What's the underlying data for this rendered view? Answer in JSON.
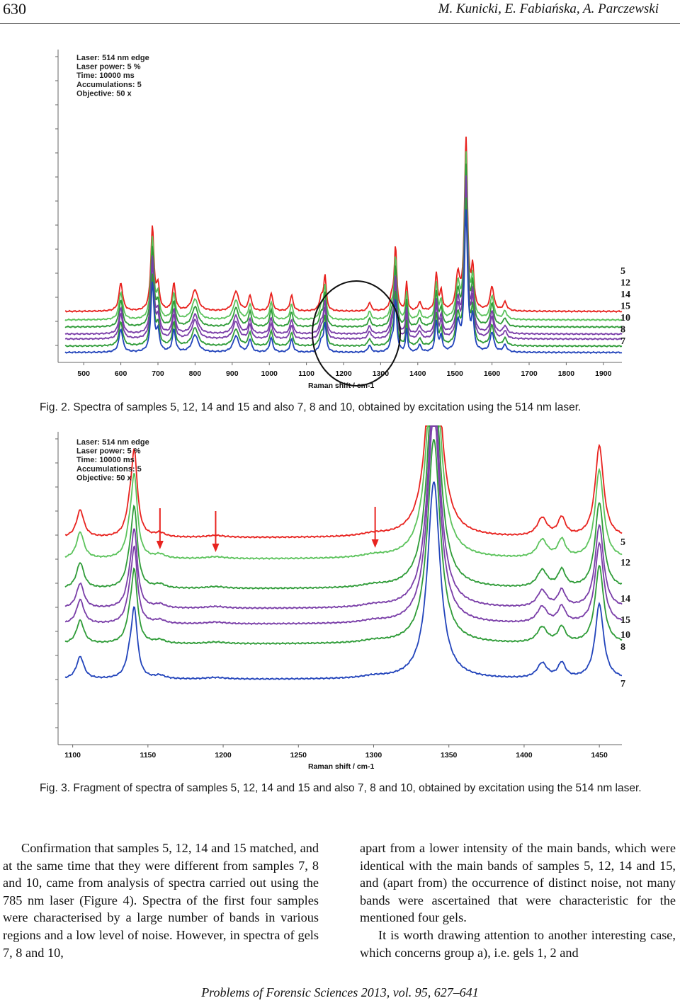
{
  "header": {
    "page_number": "630",
    "authors": "M. Kunicki, E. Fabiańska, A. Parczewski"
  },
  "figures": [
    {
      "id": "fig2",
      "caption": "Fig. 2. Spectra of samples 5, 12, 14 and 15 and also 7, 8 and 10, obtained by excitation using the 514 nm laser.",
      "info": [
        "Laser: 514 nm edge",
        "Laser power: 5 %",
        "Time: 10000 ms",
        "Accumulations: 5",
        "Objective: 50 x"
      ],
      "colors": {
        "red": "#e8231f",
        "lightgreen": "#5cc35c",
        "green": "#2f9c38",
        "purple": "#7a3ea8",
        "blue": "#2244bb",
        "circle": "#111111"
      },
      "chart_data": {
        "type": "line",
        "xlabel": "Raman shift / cm-1",
        "ylabel": "",
        "xlim": [
          450,
          1950
        ],
        "x_ticks": [
          500,
          600,
          700,
          800,
          900,
          1000,
          1100,
          1200,
          1300,
          1400,
          1500,
          1600,
          1700,
          1800,
          1900
        ],
        "series_labels": [
          "5",
          "12",
          "14",
          "15",
          "10",
          "8",
          "7"
        ],
        "series": [
          {
            "name": "5",
            "color": "red",
            "offset": 58
          },
          {
            "name": "12",
            "color": "lightgreen",
            "offset": 46
          },
          {
            "name": "14",
            "color": "green",
            "offset": 36
          },
          {
            "name": "15",
            "color": "purple",
            "offset": 26
          },
          {
            "name": "10",
            "color": "purple",
            "offset": 19
          },
          {
            "name": "8",
            "color": "green",
            "offset": 9
          },
          {
            "name": "7",
            "color": "blue",
            "offset": 0
          }
        ],
        "peaks": [
          {
            "x": 600,
            "h": 40,
            "w": 6
          },
          {
            "x": 685,
            "h": 118,
            "w": 5
          },
          {
            "x": 700,
            "h": 32,
            "w": 5
          },
          {
            "x": 743,
            "h": 38,
            "w": 5
          },
          {
            "x": 800,
            "h": 30,
            "w": 10
          },
          {
            "x": 910,
            "h": 28,
            "w": 9
          },
          {
            "x": 948,
            "h": 22,
            "w": 5
          },
          {
            "x": 1005,
            "h": 25,
            "w": 5
          },
          {
            "x": 1060,
            "h": 22,
            "w": 5
          },
          {
            "x": 1140,
            "h": 18,
            "w": 6
          },
          {
            "x": 1150,
            "h": 48,
            "w": 4
          },
          {
            "x": 1270,
            "h": 12,
            "w": 5
          },
          {
            "x": 1330,
            "h": 18,
            "w": 6
          },
          {
            "x": 1340,
            "h": 88,
            "w": 4
          },
          {
            "x": 1370,
            "h": 40,
            "w": 3
          },
          {
            "x": 1405,
            "h": 12,
            "w": 5
          },
          {
            "x": 1450,
            "h": 52,
            "w": 4
          },
          {
            "x": 1463,
            "h": 26,
            "w": 4
          },
          {
            "x": 1508,
            "h": 48,
            "w": 6
          },
          {
            "x": 1530,
            "h": 240,
            "w": 5
          },
          {
            "x": 1548,
            "h": 55,
            "w": 4
          },
          {
            "x": 1600,
            "h": 34,
            "w": 6
          },
          {
            "x": 1635,
            "h": 12,
            "w": 6
          }
        ],
        "annotation": "circle around 1150–1340 cm-1"
      }
    },
    {
      "id": "fig3",
      "caption": "Fig. 3. Fragment of spectra of samples 5, 12, 14 and 15 and also 7, 8 and 10, obtained by excitation using the 514 nm laser.",
      "info": [
        "Laser: 514 nm edge",
        "Laser power: 5 %",
        "Time: 10000 ms",
        "Accumulations: 5",
        "Objective: 50 x"
      ],
      "colors": {
        "red": "#e8231f",
        "lightgreen": "#5cc35c",
        "green": "#2f9c38",
        "purple": "#7a3ea8",
        "blue": "#2244bb",
        "arrow": "#e8231f"
      },
      "chart_data": {
        "type": "line",
        "xlabel": "Raman shift / cm-1",
        "ylabel": "",
        "xlim": [
          1095,
          1465
        ],
        "x_ticks": [
          1100,
          1150,
          1200,
          1250,
          1300,
          1350,
          1400,
          1450
        ],
        "series_labels": [
          "5",
          "12",
          "14",
          "15",
          "10",
          "8",
          "7"
        ],
        "series": [
          {
            "name": "5",
            "color": "red",
            "offset": 200
          },
          {
            "name": "12",
            "color": "lightgreen",
            "offset": 170
          },
          {
            "name": "14",
            "color": "green",
            "offset": 128
          },
          {
            "name": "15",
            "color": "purple",
            "offset": 100
          },
          {
            "name": "10",
            "color": "purple",
            "offset": 78
          },
          {
            "name": "8",
            "color": "green",
            "offset": 50
          },
          {
            "name": "7",
            "color": "blue",
            "offset": 0
          }
        ],
        "peaks": [
          {
            "x": 1105,
            "h": 42,
            "w": 3
          },
          {
            "x": 1138,
            "h": 30,
            "w": 3
          },
          {
            "x": 1141,
            "h": 120,
            "w": 2.4
          },
          {
            "x": 1158,
            "h": 6,
            "w": 4
          },
          {
            "x": 1195,
            "h": 3,
            "w": 8
          },
          {
            "x": 1300,
            "h": 4,
            "w": 10
          },
          {
            "x": 1340,
            "h": 370,
            "w": 5
          },
          {
            "x": 1412,
            "h": 28,
            "w": 4
          },
          {
            "x": 1425,
            "h": 28,
            "w": 3
          },
          {
            "x": 1450,
            "h": 140,
            "w": 3.4
          }
        ],
        "arrows_at": [
          1158,
          1195,
          1301
        ]
      }
    }
  ],
  "body": {
    "left_column": "Confirmation that samples 5, 12, 14 and 15 matched, and at the same time that they were different from samples 7, 8 and 10, came from analysis of spectra carried out using the 785 nm laser (Figure 4). Spectra of the first four samples were characterised by a large number of bands in various regions and a low level of noise. However, in spectra of gels 7, 8 and 10,",
    "right_column_p1": "apart from a lower intensity of the main bands, which were identical with the main bands of samples 5, 12, 14 and 15, and (apart from) the occurrence of distinct noise, not many bands were ascertained that were characteristic for the mentioned four gels.",
    "right_column_p2": "It is worth drawing attention to another interesting case, which concerns group a), i.e. gels 1, 2 and"
  },
  "footer": "Problems of Forensic Sciences 2013, vol. 95, 627–641"
}
